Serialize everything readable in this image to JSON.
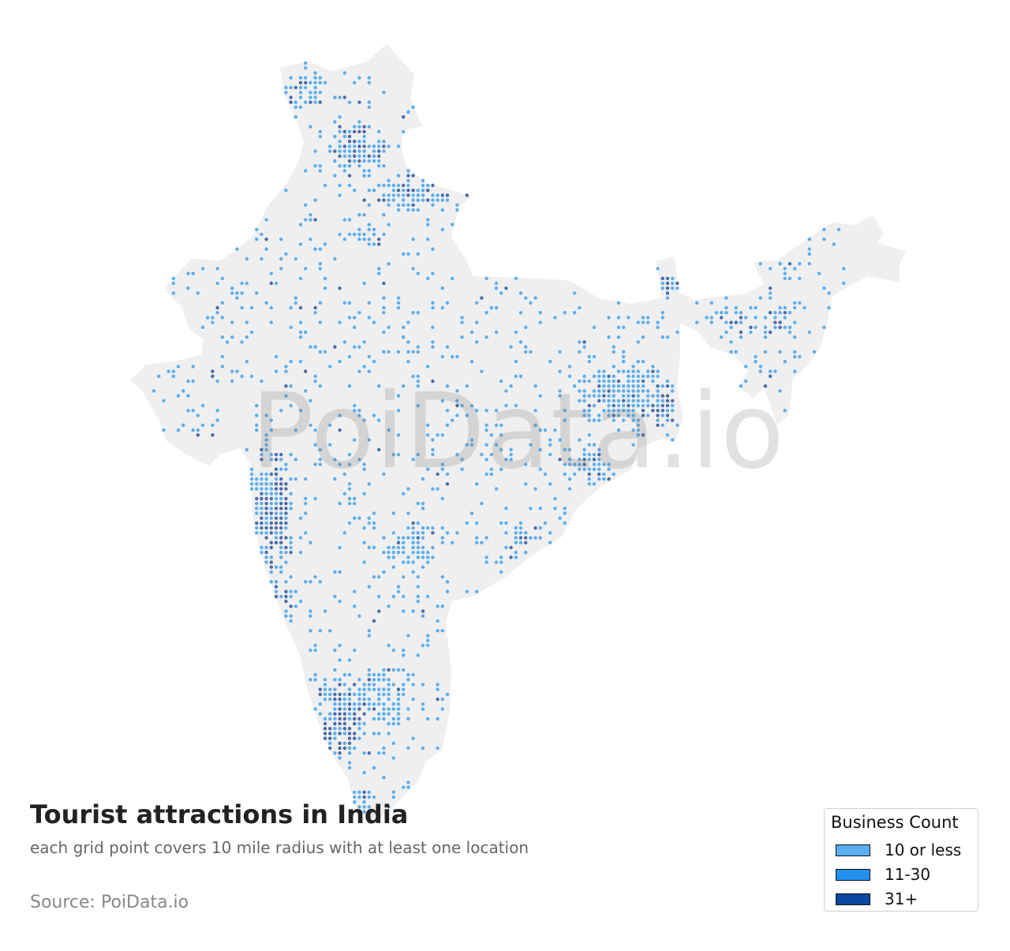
{
  "title": "Tourist attractions in India",
  "subtitle": "each grid point covers 10 mile radius with at least one location",
  "source": "Source: PoiData.io",
  "watermark": "PoiData.io",
  "legend": {
    "title": "Business Count",
    "items": [
      {
        "label": "10 or less",
        "color": "#5aaef0"
      },
      {
        "label": "11-30",
        "color": "#2290ec"
      },
      {
        "label": "31+",
        "color": "#0c47a1"
      }
    ]
  },
  "map": {
    "land_color": "#efefef",
    "dot_colors": {
      "low": "#5aaef0",
      "dark": "#4a6aa8"
    }
  }
}
